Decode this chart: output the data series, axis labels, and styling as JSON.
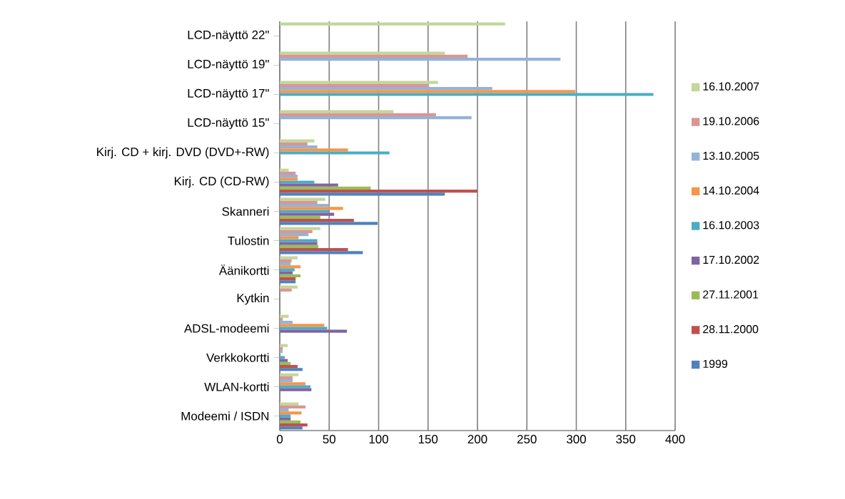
{
  "chart_data": {
    "type": "bar",
    "orientation": "horizontal",
    "categories": [
      "LCD-näyttö 22\"",
      "LCD-näyttö 19\"",
      "LCD-näyttö 17\"",
      "LCD-näyttö 15\"",
      "Kirj. CD + kirj. DVD (DVD+-RW)",
      "Kirj. CD (CD-RW)",
      "Skanneri",
      "Tulostin",
      "Äänikortti",
      "Kytkin",
      "ADSL-modeemi",
      "Verkkokortti",
      "WLAN-kortti",
      "Modeemi / ISDN"
    ],
    "series": [
      {
        "name": "16.10.2007",
        "color": "#c3d69b",
        "values": [
          228,
          167,
          160,
          115,
          35,
          9,
          46,
          41,
          18,
          18,
          9,
          8,
          19,
          19
        ]
      },
      {
        "name": "19.10.2006",
        "color": "#d99694",
        "values": [
          null,
          190,
          151,
          158,
          28,
          16,
          38,
          33,
          12,
          12,
          3,
          3,
          13,
          26
        ]
      },
      {
        "name": "13.10.2005",
        "color": "#95b3d7",
        "values": [
          null,
          284,
          215,
          194,
          38,
          18,
          50,
          29,
          11,
          null,
          13,
          3,
          13,
          9
        ]
      },
      {
        "name": "14.10.2004",
        "color": "#f79646",
        "values": [
          null,
          null,
          299,
          null,
          69,
          18,
          64,
          19,
          21,
          null,
          45,
          null,
          26,
          22
        ]
      },
      {
        "name": "16.10.2003",
        "color": "#4bacc6",
        "values": [
          null,
          null,
          378,
          null,
          111,
          35,
          50,
          38,
          15,
          null,
          48,
          5,
          31,
          11
        ]
      },
      {
        "name": "17.10.2002",
        "color": "#8064a2",
        "values": [
          null,
          null,
          null,
          null,
          null,
          59,
          55,
          38,
          13,
          null,
          68,
          8,
          32,
          11
        ]
      },
      {
        "name": "27.11.2001",
        "color": "#9bbb59",
        "values": [
          null,
          null,
          null,
          null,
          null,
          92,
          41,
          39,
          21,
          null,
          null,
          11,
          null,
          21
        ]
      },
      {
        "name": "28.11.2000",
        "color": "#c0504d",
        "values": [
          null,
          null,
          null,
          null,
          null,
          200,
          75,
          69,
          16,
          null,
          null,
          18,
          null,
          28
        ]
      },
      {
        "name": "1999",
        "color": "#4f81bd",
        "values": [
          null,
          null,
          null,
          null,
          null,
          167,
          99,
          84,
          16,
          null,
          null,
          23,
          null,
          23
        ]
      }
    ],
    "xlim": [
      0,
      400
    ],
    "xticks": [
      0,
      50,
      100,
      150,
      200,
      250,
      300,
      350,
      400
    ],
    "grid": "x",
    "legend": "right"
  }
}
